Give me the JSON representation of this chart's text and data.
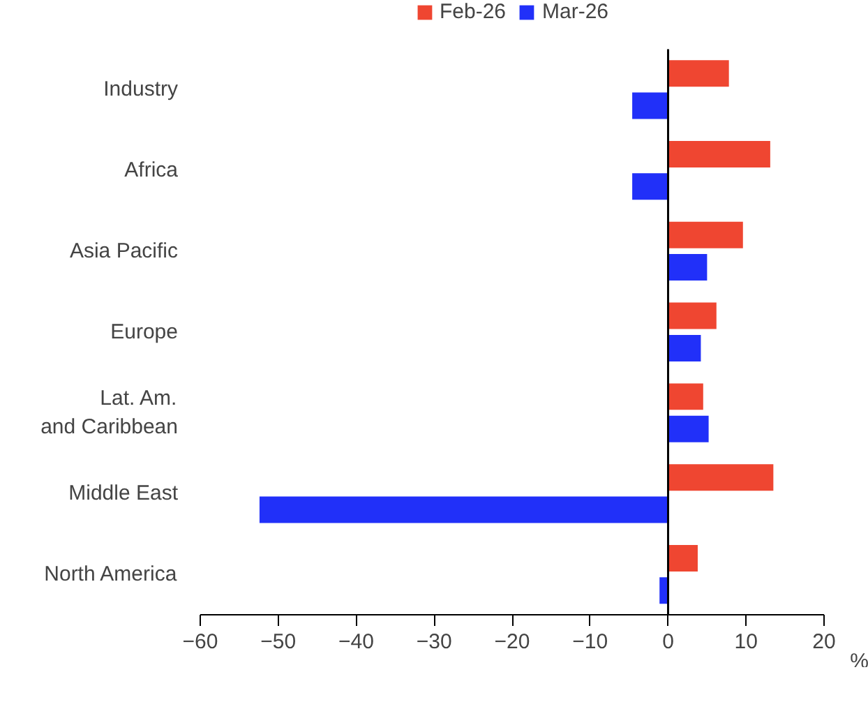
{
  "chart_data": {
    "type": "bar",
    "orientation": "horizontal",
    "xlabel": "%",
    "categories": [
      "Industry",
      "Africa",
      "Asia Pacific",
      "Europe",
      "Lat. Am.\nand Caribbean",
      "Middle East",
      "North America"
    ],
    "series": [
      {
        "name": "Feb-26",
        "color": "#ef4631",
        "values": [
          7.8,
          13.1,
          9.6,
          6.2,
          4.5,
          13.5,
          3.8
        ]
      },
      {
        "name": "Mar-26",
        "color": "#2130f9",
        "values": [
          -4.6,
          -4.6,
          5.0,
          4.2,
          5.2,
          -52.4,
          -1.1
        ]
      }
    ],
    "xlim": [
      -60,
      20
    ],
    "xticks": [
      -60,
      -50,
      -40,
      -30,
      -20,
      -10,
      0,
      10,
      20
    ],
    "legend": "top"
  }
}
